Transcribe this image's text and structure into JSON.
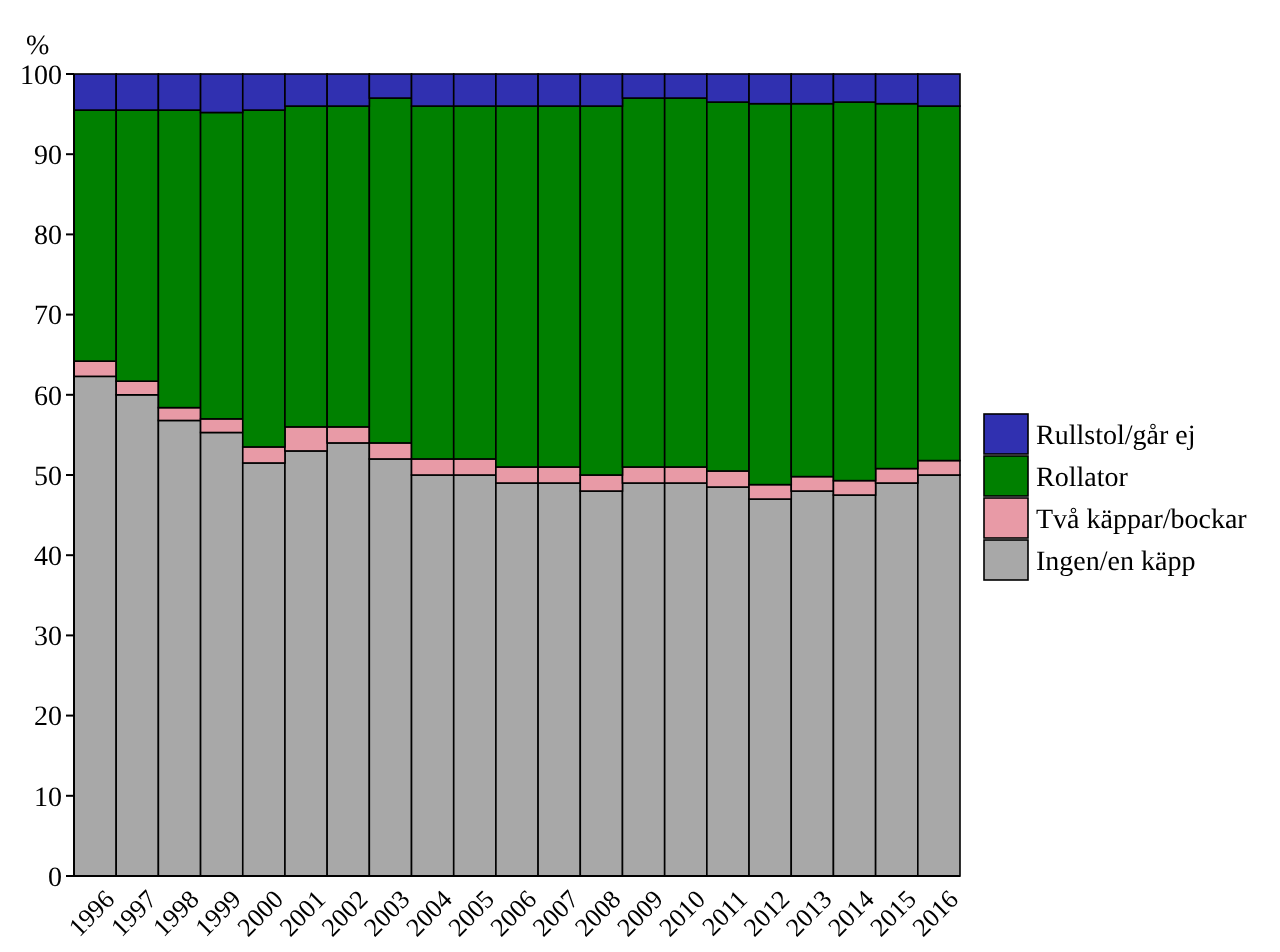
{
  "chart_data": {
    "type": "bar",
    "stacked": true,
    "ylabel": "%",
    "categories": [
      "1996",
      "1997",
      "1998",
      "1999",
      "2000",
      "2001",
      "2002",
      "2003",
      "2004",
      "2005",
      "2006",
      "2007",
      "2008",
      "2009",
      "2010",
      "2011",
      "2012",
      "2013",
      "2014",
      "2015",
      "2016"
    ],
    "series": [
      {
        "name": "Ingen/en käpp",
        "color": "#a8a8a8",
        "values": [
          62.3,
          60,
          56.8,
          55.3,
          51.5,
          53,
          54,
          52,
          50,
          50,
          49,
          49,
          48,
          49,
          49,
          48.5,
          47,
          48,
          47.5,
          49,
          50
        ]
      },
      {
        "name": "Två käppar/bockar",
        "color": "#e89aa6",
        "values": [
          1.9,
          1.7,
          1.6,
          1.7,
          2,
          3,
          2,
          2,
          2,
          2,
          2,
          2,
          2,
          2,
          2,
          2,
          1.8,
          1.8,
          1.8,
          1.8,
          1.8
        ]
      },
      {
        "name": "Rollator",
        "color": "#008000",
        "values": [
          31.3,
          33.8,
          37.1,
          38.2,
          42,
          40,
          40,
          43,
          44,
          44,
          45,
          45,
          46,
          46,
          46,
          46,
          47.5,
          46.5,
          47.2,
          45.5,
          44.2
        ]
      },
      {
        "name": "Rullstol/går ej",
        "color": "#3030b0",
        "values": [
          4.5,
          4.5,
          4.5,
          4.8,
          4.5,
          4,
          4,
          3,
          4,
          4,
          4,
          4,
          4,
          3,
          3,
          3.5,
          3.7,
          3.7,
          3.5,
          3.7,
          4
        ]
      }
    ],
    "ylim": [
      0,
      100
    ],
    "yticks": [
      0,
      10,
      20,
      30,
      40,
      50,
      60,
      70,
      80,
      90,
      100
    ],
    "legend": "right",
    "grid": false
  }
}
